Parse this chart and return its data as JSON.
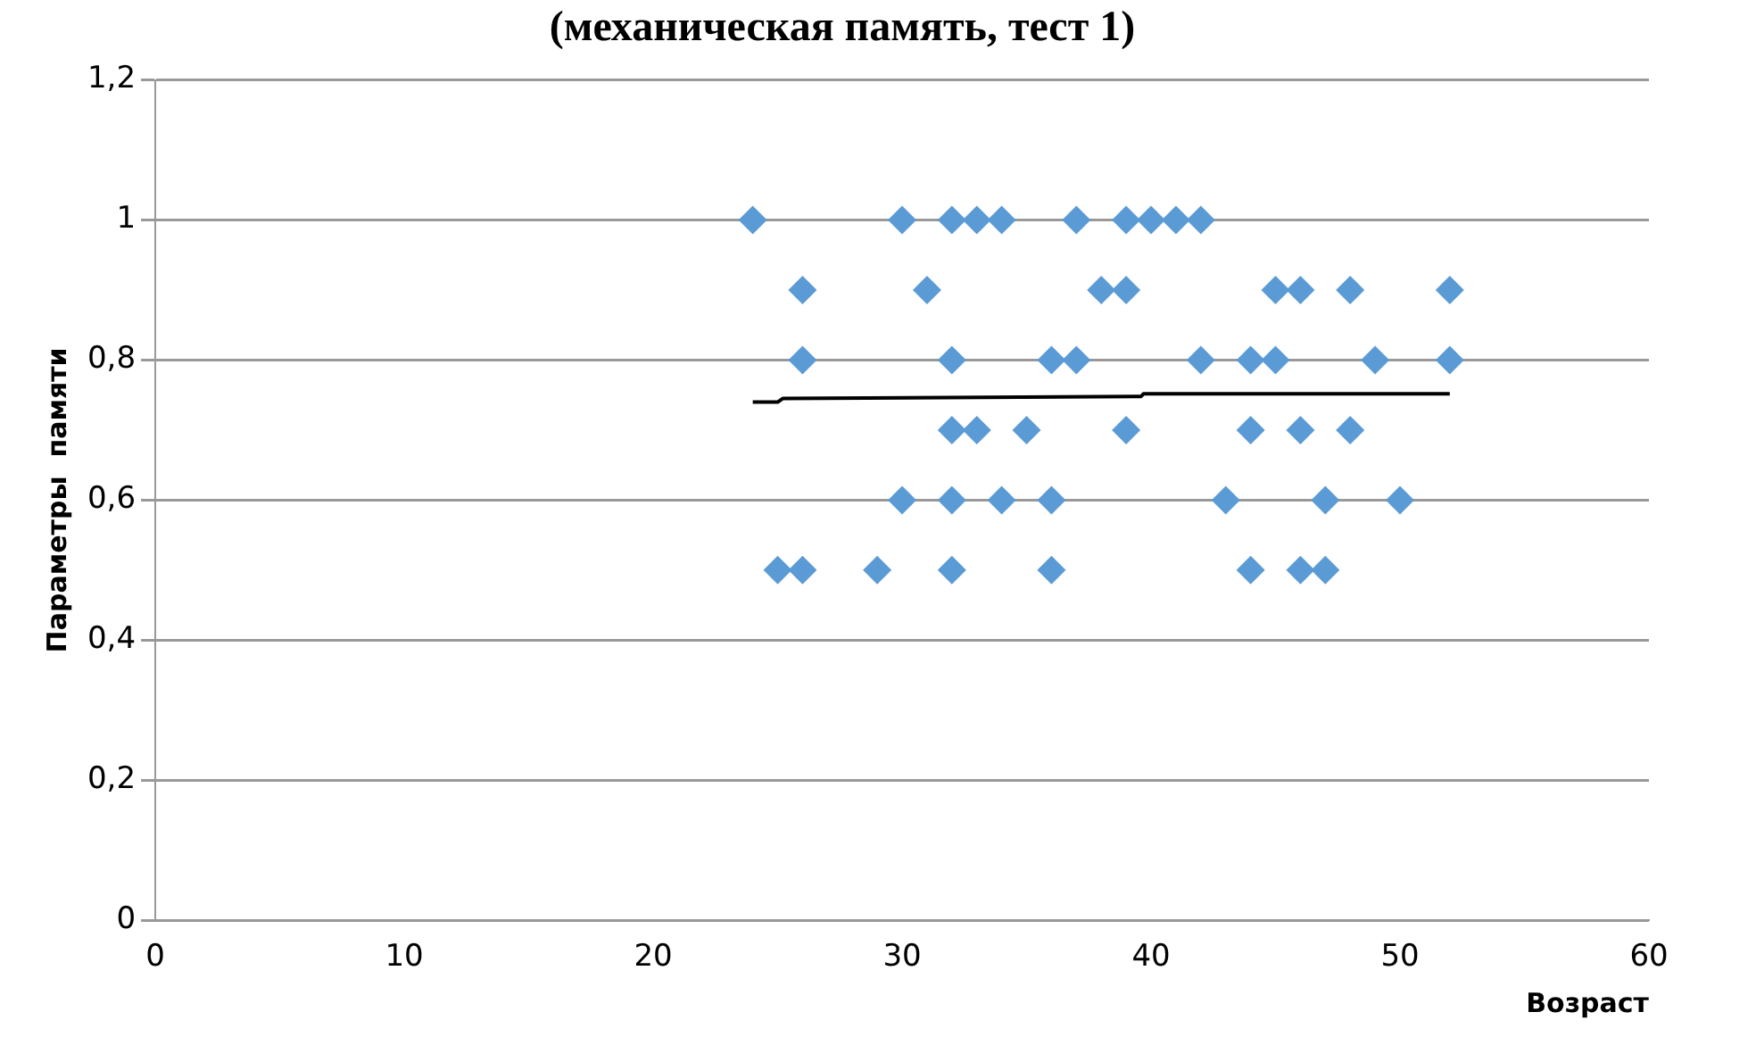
{
  "chart_data": {
    "type": "scatter",
    "title": "(механическая память, тест 1)",
    "xlabel": "Возраст",
    "ylabel": "Параметры  памяти",
    "series": [
      {
        "color": "#5b9bd5",
        "marker": "diamond",
        "x": [
          24,
          30,
          32,
          33,
          34,
          37,
          39,
          40,
          41,
          42,
          26,
          31,
          38,
          39,
          45,
          46,
          48,
          52,
          26,
          32,
          36,
          37,
          42,
          44,
          45,
          49,
          52,
          32,
          33,
          35,
          39,
          44,
          46,
          48,
          30,
          32,
          34,
          36,
          43,
          47,
          50,
          25,
          26,
          29,
          32,
          36,
          44,
          46,
          47
        ],
        "values": [
          1,
          1,
          1,
          1,
          1,
          1,
          1,
          1,
          1,
          1,
          0.9,
          0.9,
          0.9,
          0.9,
          0.9,
          0.9,
          0.9,
          0.9,
          0.8,
          0.8,
          0.8,
          0.8,
          0.8,
          0.8,
          0.8,
          0.8,
          0.8,
          0.7,
          0.7,
          0.7,
          0.7,
          0.7,
          0.7,
          0.7,
          0.6,
          0.6,
          0.6,
          0.6,
          0.6,
          0.6,
          0.6,
          0.5,
          0.5,
          0.5,
          0.5,
          0.5,
          0.5,
          0.5,
          0.5
        ]
      },
      {
        "type": "line",
        "color": "#000000",
        "marker": "none",
        "x": [
          24,
          25,
          25.2,
          39.6,
          39.7,
          52
        ],
        "values": [
          0.74,
          0.74,
          0.745,
          0.748,
          0.752,
          0.752
        ]
      }
    ],
    "xlim": [
      0,
      60
    ],
    "xticks": [
      0,
      10,
      20,
      30,
      40,
      50,
      60
    ],
    "ylim": [
      0,
      1.2
    ],
    "yticks": [
      0,
      {
        "value": 0.2,
        "label": "0,2"
      },
      {
        "value": 0.4,
        "label": "0,4"
      },
      {
        "value": 0.6,
        "label": "0,6"
      },
      {
        "value": 0.8,
        "label": "0,8"
      },
      1,
      {
        "value": 1.2,
        "label": "1,2"
      }
    ],
    "grid": "y",
    "legend": false
  }
}
